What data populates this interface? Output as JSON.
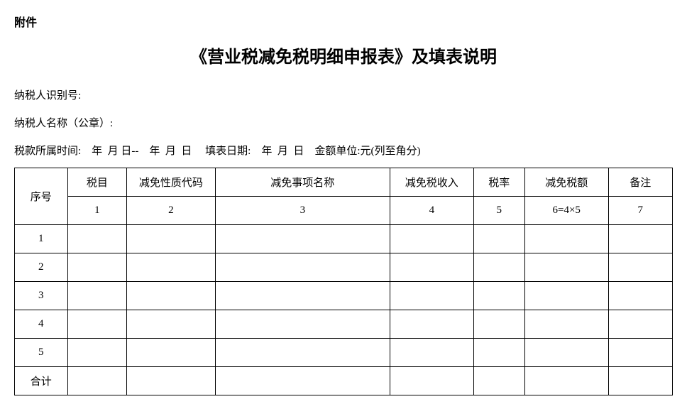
{
  "attachment_label": "附件",
  "title": "《营业税减免税明细申报表》及填表说明",
  "taxpayer_id_label": "纳税人识别号:",
  "taxpayer_name_label": "纳税人名称（公章）:",
  "date_line": {
    "period_label": "税款所属时间:",
    "period_from": "    年  月 日--    年  月  日",
    "fill_date_label": "     填表日期:",
    "fill_date_value": "    年  月  日",
    "unit_label": "    金额单位:元(列至角分)"
  },
  "table": {
    "columns": [
      {
        "key": "seq",
        "header": "序号",
        "num": ""
      },
      {
        "key": "tax_item",
        "header": "税目",
        "num": "1"
      },
      {
        "key": "exempt_code",
        "header": "减免性质代码",
        "num": "2"
      },
      {
        "key": "exempt_item",
        "header": "减免事项名称",
        "num": "3"
      },
      {
        "key": "exempt_income",
        "header": "减免税收入",
        "num": "4"
      },
      {
        "key": "tax_rate",
        "header": "税率",
        "num": "5"
      },
      {
        "key": "exempt_amount",
        "header": "减免税额",
        "num": "6=4×5"
      },
      {
        "key": "remark",
        "header": "备注",
        "num": "7"
      }
    ],
    "rows": [
      {
        "seq": "1",
        "cells": [
          "",
          "",
          "",
          "",
          "",
          "",
          ""
        ]
      },
      {
        "seq": "2",
        "cells": [
          "",
          "",
          "",
          "",
          "",
          "",
          ""
        ]
      },
      {
        "seq": "3",
        "cells": [
          "",
          "",
          "",
          "",
          "",
          "",
          ""
        ]
      },
      {
        "seq": "4",
        "cells": [
          "",
          "",
          "",
          "",
          "",
          "",
          ""
        ]
      },
      {
        "seq": "5",
        "cells": [
          "",
          "",
          "",
          "",
          "",
          "",
          ""
        ]
      }
    ],
    "total_label": "合计"
  }
}
